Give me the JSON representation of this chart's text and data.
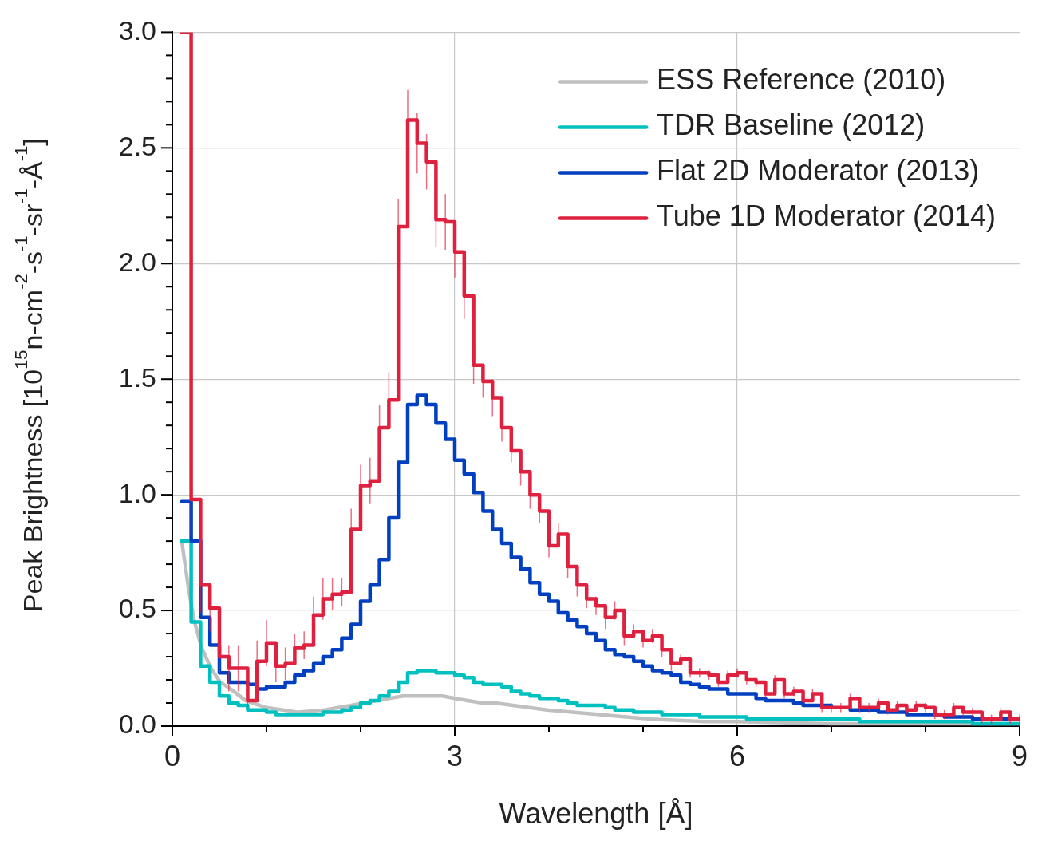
{
  "chart_data": {
    "type": "step",
    "xlabel": "Wavelength [Å]",
    "ylabel": "Peak Brightness [10$^{15}$n-cm$^{-2}$-s$^{-1}$-sr$^{-1}$-Å$^{-1}$]",
    "xlim": [
      0,
      9
    ],
    "xticks": [
      0,
      {
        "value": 1,
        "label": null
      },
      {
        "value": 2,
        "label": null
      },
      3,
      {
        "value": 4,
        "label": null
      },
      {
        "value": 5,
        "label": null
      },
      6,
      {
        "value": 7,
        "label": null
      },
      {
        "value": 8,
        "label": null
      },
      9
    ],
    "ylim": [
      0,
      3
    ],
    "yticks": [
      {
        "value": 0,
        "label": "0.0"
      },
      {
        "value": 0.1,
        "label": null
      },
      {
        "value": 0.2,
        "label": null
      },
      {
        "value": 0.3,
        "label": null
      },
      {
        "value": 0.4,
        "label": null
      },
      0.5,
      {
        "value": 0.6,
        "label": null
      },
      {
        "value": 0.7,
        "label": null
      },
      {
        "value": 0.8,
        "label": null
      },
      {
        "value": 0.9,
        "label": null
      },
      {
        "value": 1,
        "label": "1.0"
      },
      {
        "value": 1.1,
        "label": null
      },
      {
        "value": 1.2,
        "label": null
      },
      {
        "value": 1.3,
        "label": null
      },
      {
        "value": 1.4,
        "label": null
      },
      1.5,
      {
        "value": 1.6,
        "label": null
      },
      {
        "value": 1.7,
        "label": null
      },
      {
        "value": 1.8,
        "label": null
      },
      {
        "value": 1.9,
        "label": null
      },
      {
        "value": 2,
        "label": "2.0"
      },
      {
        "value": 2.1,
        "label": null
      },
      {
        "value": 2.2,
        "label": null
      },
      {
        "value": 2.3,
        "label": null
      },
      {
        "value": 2.4,
        "label": null
      },
      2.5,
      {
        "value": 2.6,
        "label": null
      },
      {
        "value": 2.7,
        "label": null
      },
      {
        "value": 2.8,
        "label": null
      },
      {
        "value": 2.9,
        "label": null
      },
      {
        "value": 3,
        "label": "3.0"
      }
    ],
    "grid": true,
    "legend": "top right",
    "x": [
      0.1,
      0.2,
      0.3,
      0.4,
      0.5,
      0.6,
      0.7,
      0.8,
      0.9,
      1.0,
      1.1,
      1.2,
      1.3,
      1.4,
      1.5,
      1.6,
      1.7,
      1.8,
      1.9,
      2.0,
      2.1,
      2.2,
      2.3,
      2.4,
      2.5,
      2.6,
      2.7,
      2.8,
      2.9,
      3.0,
      3.1,
      3.2,
      3.3,
      3.4,
      3.5,
      3.6,
      3.7,
      3.8,
      3.9,
      4.0,
      4.1,
      4.2,
      4.3,
      4.4,
      4.5,
      4.6,
      4.7,
      4.8,
      4.9,
      5.0,
      5.1,
      5.2,
      5.3,
      5.4,
      5.5,
      5.6,
      5.7,
      5.8,
      5.9,
      6.0,
      6.1,
      6.2,
      6.3,
      6.4,
      6.5,
      6.6,
      6.7,
      6.8,
      6.9,
      7.0,
      7.1,
      7.2,
      7.3,
      7.4,
      7.5,
      7.6,
      7.7,
      7.8,
      7.9,
      8.0,
      8.1,
      8.2,
      8.3,
      8.4,
      8.5,
      8.6,
      8.7,
      8.8,
      8.9,
      9.0
    ],
    "series": [
      {
        "name": "ESS Reference (2010)",
        "type": "line",
        "color": "#c0c0c0",
        "x": [
          0.1,
          0.17,
          0.23,
          0.31,
          0.41,
          0.51,
          0.62,
          0.78,
          1.0,
          1.34,
          1.62,
          1.9,
          2.17,
          2.45,
          2.62,
          2.87,
          3.0,
          3.29,
          3.43,
          3.98,
          4.54,
          5.09,
          5.65,
          6.01,
          7.0,
          8.0,
          9.0
        ],
        "values": [
          0.8,
          0.6,
          0.46,
          0.34,
          0.25,
          0.19,
          0.16,
          0.11,
          0.08,
          0.06,
          0.07,
          0.09,
          0.11,
          0.13,
          0.13,
          0.13,
          0.12,
          0.1,
          0.1,
          0.07,
          0.05,
          0.03,
          0.02,
          0.02,
          0.01,
          0.01,
          0.01
        ]
      },
      {
        "name": "TDR Baseline (2012)",
        "color": "#00c0c0",
        "values": [
          0.8,
          0.45,
          0.26,
          0.19,
          0.13,
          0.1,
          0.09,
          0.07,
          0.07,
          0.06,
          0.05,
          0.05,
          0.05,
          0.05,
          0.05,
          0.06,
          0.06,
          0.07,
          0.08,
          0.1,
          0.11,
          0.13,
          0.15,
          0.19,
          0.23,
          0.24,
          0.24,
          0.23,
          0.23,
          0.22,
          0.21,
          0.19,
          0.18,
          0.18,
          0.17,
          0.15,
          0.14,
          0.13,
          0.12,
          0.12,
          0.11,
          0.1,
          0.09,
          0.09,
          0.09,
          0.08,
          0.07,
          0.07,
          0.06,
          0.06,
          0.06,
          0.05,
          0.05,
          0.05,
          0.05,
          0.04,
          0.04,
          0.04,
          0.04,
          0.04,
          0.03,
          0.03,
          0.03,
          0.03,
          0.03,
          0.03,
          0.03,
          0.03,
          0.03,
          0.03,
          0.03,
          0.03,
          0.02,
          0.02,
          0.02,
          0.02,
          0.02,
          0.02,
          0.02,
          0.02,
          0.02,
          0.02,
          0.02,
          0.02,
          0.01,
          0.01,
          0.01,
          0.01,
          0.01,
          0.01
        ]
      },
      {
        "name": "Flat 2D Moderator (2013)",
        "color": "#0040c0",
        "values": [
          0.97,
          0.8,
          0.47,
          0.35,
          0.23,
          0.19,
          0.19,
          0.18,
          0.16,
          0.17,
          0.17,
          0.19,
          0.22,
          0.24,
          0.27,
          0.3,
          0.33,
          0.38,
          0.44,
          0.54,
          0.61,
          0.72,
          0.9,
          1.14,
          1.39,
          1.43,
          1.39,
          1.31,
          1.24,
          1.15,
          1.09,
          1.01,
          0.93,
          0.85,
          0.79,
          0.73,
          0.68,
          0.62,
          0.57,
          0.54,
          0.49,
          0.46,
          0.43,
          0.4,
          0.37,
          0.33,
          0.31,
          0.3,
          0.28,
          0.26,
          0.24,
          0.23,
          0.22,
          0.19,
          0.18,
          0.17,
          0.16,
          0.16,
          0.14,
          0.14,
          0.14,
          0.12,
          0.11,
          0.11,
          0.11,
          0.1,
          0.09,
          0.09,
          0.09,
          0.08,
          null,
          0.07,
          0.07,
          0.07,
          0.06,
          0.06,
          0.06,
          0.05,
          0.05,
          0.05,
          0.05,
          0.04,
          0.04,
          0.04,
          0.03,
          0.03,
          0.03,
          0.03,
          0.03,
          0.03
        ]
      },
      {
        "name": "Tube 1D Moderator (2014)",
        "color": "#e0203f",
        "values": [
          3.0,
          0.98,
          0.61,
          0.51,
          0.3,
          0.25,
          0.25,
          0.11,
          0.28,
          0.36,
          0.26,
          0.27,
          0.34,
          0.35,
          0.48,
          0.55,
          0.57,
          0.58,
          0.85,
          1.04,
          1.06,
          1.29,
          1.41,
          2.16,
          2.62,
          2.52,
          2.44,
          2.19,
          2.18,
          2.05,
          1.86,
          1.56,
          1.49,
          1.42,
          1.29,
          1.19,
          1.1,
          1.0,
          0.93,
          0.78,
          0.83,
          0.69,
          0.61,
          0.55,
          0.52,
          0.47,
          0.5,
          0.39,
          0.41,
          0.37,
          0.39,
          0.33,
          0.27,
          0.29,
          0.23,
          0.23,
          0.22,
          0.19,
          0.22,
          0.23,
          0.2,
          0.19,
          0.14,
          0.2,
          0.14,
          0.15,
          0.11,
          0.14,
          0.08,
          0.08,
          0.08,
          0.12,
          0.08,
          0.08,
          0.1,
          0.07,
          0.09,
          0.07,
          0.09,
          0.08,
          0.05,
          0.05,
          0.08,
          0.06,
          0.06,
          0.03,
          0.03,
          0.06,
          0.03,
          0.03
        ],
        "errors": [
          null,
          0.16,
          0.12,
          0.1,
          0.07,
          0.1,
          0.1,
          0.03,
          0.09,
          0.1,
          0.07,
          0.07,
          0.06,
          0.06,
          0.08,
          0.09,
          0.07,
          0.06,
          0.09,
          0.09,
          0.1,
          0.1,
          0.12,
          0.12,
          0.13,
          0.13,
          0.12,
          0.12,
          0.12,
          0.11,
          0.1,
          0.08,
          0.07,
          0.08,
          0.06,
          0.05,
          0.06,
          0.06,
          0.05,
          0.05,
          0.05,
          0.05,
          0.05,
          0.04,
          0.04,
          0.05,
          0.04,
          0.04,
          0.03,
          0.03,
          0.03,
          0.03,
          0.03,
          0.02,
          0.02,
          0.02,
          0.02,
          0.02,
          0.02,
          0.02,
          0.02,
          0.02,
          0.02,
          0.02,
          0.02,
          0.02,
          0.02,
          0.02,
          0.02,
          0.02,
          0.02,
          0.02,
          0.02,
          0.02,
          0.02,
          0.02,
          0.02,
          0.02,
          0.02,
          0.02,
          0.02,
          0.02,
          0.02,
          0.02,
          0.02,
          0.02,
          0.02,
          0.02,
          0.02,
          0.02
        ]
      }
    ]
  }
}
